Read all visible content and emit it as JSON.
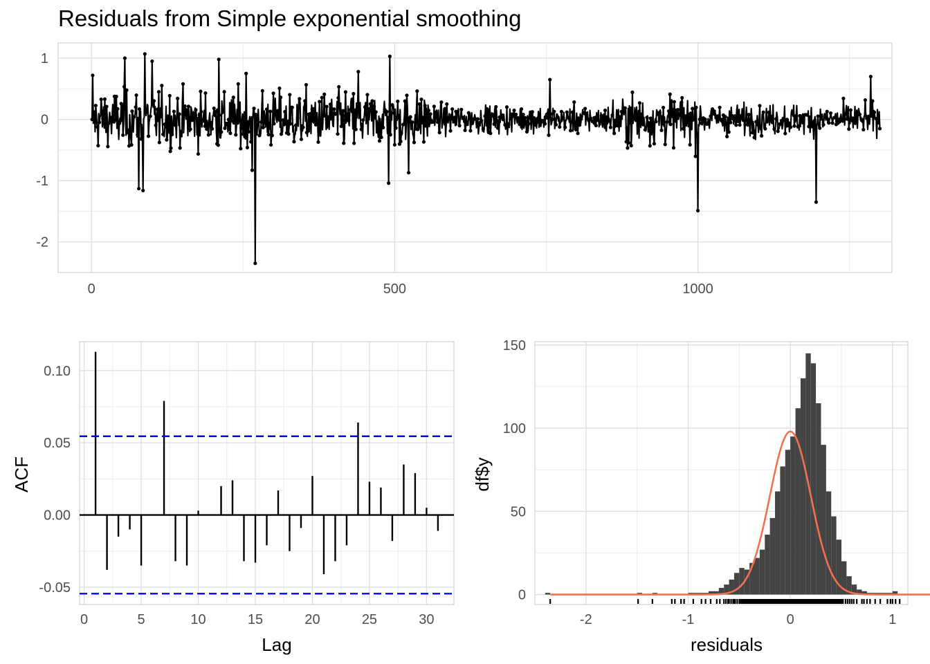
{
  "title": "Residuals from Simple exponential smoothing",
  "chart_data": [
    {
      "id": "residuals-series",
      "type": "line",
      "title": "Residuals from Simple exponential smoothing",
      "xlabel": "",
      "ylabel": "",
      "xlim": [
        -55,
        1320
      ],
      "ylim": [
        -2.5,
        1.25
      ],
      "x_ticks": [
        0,
        500,
        1000
      ],
      "x_tick_labels": [
        "0",
        "500",
        "1000"
      ],
      "y_ticks": [
        -2,
        -1,
        0,
        1
      ],
      "y_tick_labels": [
        "-2",
        "-1",
        "0",
        "1"
      ],
      "n": 1300,
      "points": true,
      "grid": true,
      "color": "#000000",
      "notable_points": [
        {
          "x": 1,
          "y": 0.0
        },
        {
          "x": 2,
          "y": 0.72
        },
        {
          "x": 55,
          "y": 1.0
        },
        {
          "x": 78,
          "y": -1.13
        },
        {
          "x": 85,
          "y": -1.16
        },
        {
          "x": 88,
          "y": 1.07
        },
        {
          "x": 100,
          "y": 0.95
        },
        {
          "x": 210,
          "y": 0.98
        },
        {
          "x": 255,
          "y": 0.75
        },
        {
          "x": 265,
          "y": -0.83
        },
        {
          "x": 270,
          "y": -2.35
        },
        {
          "x": 440,
          "y": 0.78
        },
        {
          "x": 490,
          "y": -1.04
        },
        {
          "x": 492,
          "y": 1.03
        },
        {
          "x": 523,
          "y": -0.87
        },
        {
          "x": 756,
          "y": 0.65
        },
        {
          "x": 1000,
          "y": -1.49
        },
        {
          "x": 1195,
          "y": -1.35
        },
        {
          "x": 1285,
          "y": 0.7
        },
        {
          "x": 1300,
          "y": -0.15
        }
      ]
    },
    {
      "id": "acf",
      "type": "bar",
      "xlabel": "Lag",
      "ylabel": "ACF",
      "xlim": [
        -0.4,
        32.4
      ],
      "ylim": [
        -0.062,
        0.12
      ],
      "x_ticks": [
        0,
        5,
        10,
        15,
        20,
        25,
        30
      ],
      "x_tick_labels": [
        "0",
        "5",
        "10",
        "15",
        "20",
        "25",
        "30"
      ],
      "y_ticks": [
        -0.05,
        0,
        0.05,
        0.1
      ],
      "y_tick_labels": [
        "-0.05",
        "0.00",
        "0.05",
        "0.10"
      ],
      "lags": [
        1,
        2,
        3,
        4,
        5,
        6,
        7,
        8,
        9,
        10,
        11,
        12,
        13,
        14,
        15,
        16,
        17,
        18,
        19,
        20,
        21,
        22,
        23,
        24,
        25,
        26,
        27,
        28,
        29,
        30,
        31
      ],
      "values": [
        0.113,
        -0.038,
        -0.015,
        -0.01,
        -0.035,
        0.0,
        0.079,
        -0.032,
        -0.035,
        0.003,
        0.0,
        0.02,
        0.024,
        -0.032,
        -0.033,
        -0.021,
        0.017,
        -0.025,
        -0.009,
        0.027,
        -0.041,
        -0.032,
        -0.021,
        0.064,
        0.023,
        0.019,
        -0.018,
        0.035,
        0.029,
        0.005,
        -0.011
      ],
      "ci": 0.0545,
      "ci_color": "#0000ff",
      "bar_color": "#000000"
    },
    {
      "id": "histogram",
      "type": "bar",
      "xlabel": "residuals",
      "ylabel": "df$y",
      "xlim": [
        -2.5,
        1.15
      ],
      "ylim": [
        -6,
        152
      ],
      "x_ticks": [
        -2,
        -1,
        0,
        1
      ],
      "x_tick_labels": [
        "-2",
        "-1",
        "0",
        "1"
      ],
      "y_ticks": [
        0,
        50,
        100,
        150
      ],
      "y_tick_labels": [
        "0",
        "50",
        "100",
        "150"
      ],
      "bin_width": 0.05,
      "bin_start": -1.0,
      "counts": [
        1,
        1,
        1,
        1,
        2,
        2,
        4,
        6,
        9,
        13,
        16,
        15,
        19,
        22,
        27,
        36,
        46,
        62,
        77,
        87,
        95,
        112,
        130,
        145,
        139,
        115,
        90,
        62,
        47,
        33,
        20,
        11,
        6,
        3,
        2,
        1,
        1,
        1,
        1,
        1,
        2
      ],
      "extra_bins": [
        {
          "x0": -2.4,
          "x1": -2.35,
          "count": 1
        },
        {
          "x0": -1.5,
          "x1": -1.45,
          "count": 1
        },
        {
          "x0": -1.35,
          "x1": -1.3,
          "count": 1
        }
      ],
      "bar_color": "#444444",
      "normal_curve": {
        "mean": 0.0,
        "sd": 0.2,
        "peak": 98,
        "color": "#f4714f"
      },
      "rug": [
        -2.35,
        -1.49,
        -1.35,
        -1.16,
        -1.13,
        -1.07,
        -1.04,
        -0.95,
        -0.87,
        -0.83,
        -0.78,
        -0.72,
        -0.69,
        -0.65,
        -0.63,
        -0.61,
        -0.6,
        -0.58,
        -0.56,
        -0.55,
        -0.54,
        -0.52,
        0.54,
        0.56,
        0.58,
        0.6,
        0.62,
        0.65,
        0.7,
        0.72,
        0.75,
        0.78,
        0.83,
        0.88,
        0.95,
        0.98,
        1.0,
        1.03,
        1.07
      ]
    }
  ]
}
